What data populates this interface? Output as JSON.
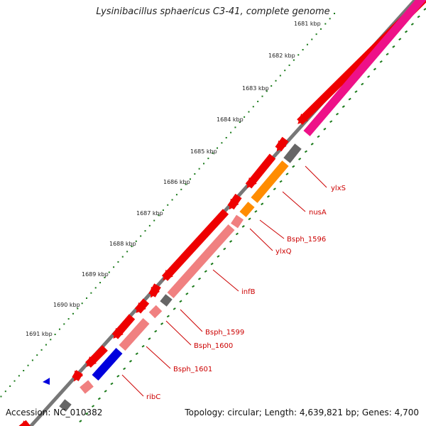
{
  "title": "Lysinibacillus sphaericus C3-41, complete genome",
  "accession": "Accession: NC_010382",
  "topology": "Topology: circular; Length: 4,639,821 bp; Genes: 4,700",
  "kbp_ticks": [
    "1681 kbp",
    "1682 kbp",
    "1683 kbp",
    "1684 kbp",
    "1685 kbp",
    "1686 kbp",
    "1687 kbp",
    "1688 kbp",
    "1689 kbp",
    "1690 kbp",
    "1691 kbp"
  ],
  "gene_labels": [
    "ylxS",
    "nusA",
    "Bsph_1596",
    "ylxQ",
    "infB",
    "Bsph_1599",
    "Bsph_1600",
    "Bsph_1601",
    "ribC"
  ],
  "colors": {
    "backbone": "#777777",
    "cds_forward": "#ee0000",
    "gene_light": "#f08080",
    "gene_orange": "#ff8c00",
    "gene_blue": "#0000dd",
    "gene_gray": "#666666",
    "gene_magenta": "#ee1188",
    "tick_green": "#1a7a1a",
    "label_red": "#cc0000"
  }
}
